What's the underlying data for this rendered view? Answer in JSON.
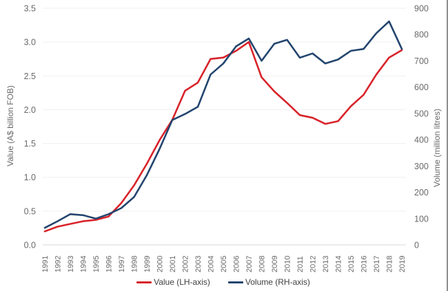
{
  "chart_data": {
    "type": "line",
    "title": "",
    "x": [
      1991,
      1992,
      1993,
      1994,
      1995,
      1996,
      1997,
      1998,
      1999,
      2000,
      2001,
      2002,
      2003,
      2004,
      2005,
      2006,
      2007,
      2008,
      2009,
      2010,
      2011,
      2012,
      2013,
      2014,
      2015,
      2016,
      2017,
      2018,
      2019
    ],
    "series": [
      {
        "name": "Value (LH-axis)",
        "axis": "left",
        "color": "#d8232a",
        "values": [
          0.2,
          0.27,
          0.31,
          0.35,
          0.37,
          0.42,
          0.62,
          0.88,
          1.2,
          1.55,
          1.85,
          2.28,
          2.4,
          2.75,
          2.77,
          2.87,
          3.0,
          2.48,
          2.27,
          2.1,
          1.92,
          1.88,
          1.79,
          1.83,
          2.05,
          2.22,
          2.52,
          2.77,
          2.88
        ]
      },
      {
        "name": "Volume (RH-axis)",
        "axis": "right",
        "color": "#23456e",
        "values": [
          65,
          90,
          117,
          113,
          100,
          117,
          140,
          182,
          265,
          365,
          475,
          498,
          525,
          648,
          690,
          755,
          785,
          700,
          765,
          780,
          712,
          728,
          690,
          705,
          738,
          745,
          805,
          850,
          745
        ]
      }
    ],
    "left_axis": {
      "title": "Value (A$ billion FOB)",
      "min": 0,
      "max": 3.5,
      "step": 0.5,
      "tick_labels": [
        "0.0",
        "0.5",
        "1.0",
        "1.5",
        "2.0",
        "2.5",
        "3.0",
        "3.5"
      ]
    },
    "right_axis": {
      "title": "Volume (million litres)",
      "min": 0,
      "max": 900,
      "step": 100,
      "tick_labels": [
        "0",
        "100",
        "200",
        "300",
        "400",
        "500",
        "600",
        "700",
        "800",
        "900"
      ]
    },
    "grid": true,
    "legend_position": "bottom"
  },
  "legend": {
    "value_label": "Value (LH-axis)",
    "volume_label": "Volume (RH-axis)"
  },
  "colors": {
    "value_line": "#d8232a",
    "volume_line": "#23456e",
    "gridline": "#efefef",
    "baseline": "#d9d9d9",
    "tick_text": "#6a6a6a",
    "legend_text": "#3f3f3f"
  }
}
